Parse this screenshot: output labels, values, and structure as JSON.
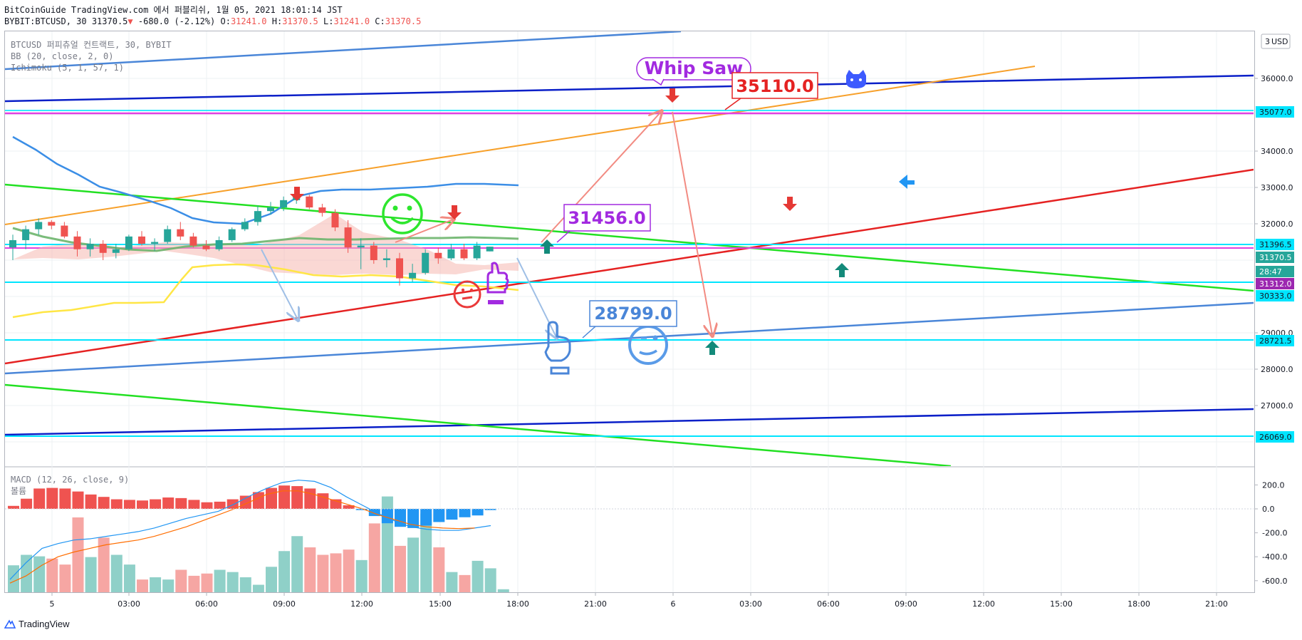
{
  "header": {
    "line1": "BitCoinGuide TradingView.com 에서 퍼블리쉬, 1월 05, 2021 18:01:14 JST",
    "symbol": "BYBIT:BTCUSD, 30",
    "last": "31370.5",
    "change_arrow": "▼",
    "change": "-680.0 (-2.12%)",
    "ohlc_prefix": [
      "O:",
      "H:",
      "L:",
      "C:"
    ],
    "ohlc": [
      "31241.0",
      "31370.5",
      "31241.0",
      "31370.5"
    ]
  },
  "legend": {
    "main": "BTCUSD 퍼피츄얼 컨트랙트, 30, BYBIT",
    "bb": "BB (20, close, 2, 0)",
    "ichimoku": "Ichimoku (5, 1, 57, 1)",
    "macd": "MACD (12, 26, close, 9)",
    "volume": "볼륨"
  },
  "annotations": {
    "whipsaw": "Whip Saw",
    "callout_35110": "35110.0",
    "callout_31456": "31456.0",
    "callout_28799": "28799.0"
  },
  "price_axis": {
    "currency": "USD",
    "compare": "3",
    "ticks": [
      "36000.0",
      "34000.0",
      "33000.0",
      "32000.0",
      "29000.0",
      "28000.0",
      "27000.0"
    ],
    "tags": [
      {
        "label": "35077.0",
        "color": "#00e5ff",
        "text_color": "#131722"
      },
      {
        "label": "31396.5",
        "color": "#00e5ff",
        "text_color": "#131722"
      },
      {
        "label": "31370.5",
        "color": "#26a69a",
        "text_color": "#ffffff"
      },
      {
        "label": "28:47",
        "color": "#26a69a",
        "text_color": "#ffffff"
      },
      {
        "label": "31312.0",
        "color": "#9c27b0",
        "text_color": "#ffffff"
      },
      {
        "label": "30333.0",
        "color": "#00e5ff",
        "text_color": "#131722"
      },
      {
        "label": "28721.5",
        "color": "#00e5ff",
        "text_color": "#131722"
      },
      {
        "label": "26069.0",
        "color": "#00e5ff",
        "text_color": "#131722"
      }
    ]
  },
  "macd_axis": {
    "ticks": [
      "200.0",
      "0.0",
      "-200.0",
      "-400.0",
      "-600.0"
    ]
  },
  "time_axis": {
    "ticks": [
      "5",
      "03:00",
      "06:00",
      "09:00",
      "12:00",
      "15:00",
      "18:00",
      "21:00",
      "6",
      "03:00",
      "06:00",
      "09:00",
      "12:00",
      "15:00",
      "18:00",
      "21:00"
    ]
  },
  "footer": {
    "brand": "TradingView"
  },
  "chart_data": [
    {
      "type": "candlestick",
      "title": "BTCUSD 퍼피츄얼 컨트랙트, 30, BYBIT",
      "ylabel": "USD",
      "ylim": [
        25800,
        36600
      ],
      "candles": [
        {
          "t": "00:00",
          "o": 31350,
          "h": 31700,
          "l": 31000,
          "c": 31550
        },
        {
          "t": "00:30",
          "o": 31550,
          "h": 31950,
          "l": 31300,
          "c": 31850
        },
        {
          "t": "01:00",
          "o": 31850,
          "h": 32150,
          "l": 31700,
          "c": 32050
        },
        {
          "t": "01:30",
          "o": 32050,
          "h": 32100,
          "l": 31850,
          "c": 31950
        },
        {
          "t": "02:00",
          "o": 31950,
          "h": 32050,
          "l": 31600,
          "c": 31650
        },
        {
          "t": "02:30",
          "o": 31650,
          "h": 31800,
          "l": 31100,
          "c": 31300
        },
        {
          "t": "03:00",
          "o": 31300,
          "h": 31600,
          "l": 31100,
          "c": 31450
        },
        {
          "t": "03:30",
          "o": 31450,
          "h": 31550,
          "l": 31000,
          "c": 31200
        },
        {
          "t": "04:00",
          "o": 31200,
          "h": 31450,
          "l": 31050,
          "c": 31300
        },
        {
          "t": "04:30",
          "o": 31300,
          "h": 31700,
          "l": 31250,
          "c": 31650
        },
        {
          "t": "05:00",
          "o": 31650,
          "h": 31800,
          "l": 31400,
          "c": 31450
        },
        {
          "t": "05:30",
          "o": 31450,
          "h": 31600,
          "l": 31250,
          "c": 31500
        },
        {
          "t": "06:00",
          "o": 31500,
          "h": 31950,
          "l": 31450,
          "c": 31850
        },
        {
          "t": "06:30",
          "o": 31850,
          "h": 32050,
          "l": 31550,
          "c": 31650
        },
        {
          "t": "07:00",
          "o": 31650,
          "h": 31750,
          "l": 31350,
          "c": 31400
        },
        {
          "t": "07:30",
          "o": 31400,
          "h": 31550,
          "l": 31250,
          "c": 31300
        },
        {
          "t": "08:00",
          "o": 31300,
          "h": 31650,
          "l": 31250,
          "c": 31550
        },
        {
          "t": "08:30",
          "o": 31550,
          "h": 31900,
          "l": 31500,
          "c": 31850
        },
        {
          "t": "09:00",
          "o": 31850,
          "h": 32150,
          "l": 31800,
          "c": 32050
        },
        {
          "t": "09:30",
          "o": 32050,
          "h": 32500,
          "l": 31950,
          "c": 32350
        },
        {
          "t": "10:00",
          "o": 32350,
          "h": 32600,
          "l": 32250,
          "c": 32450
        },
        {
          "t": "10:30",
          "o": 32450,
          "h": 32750,
          "l": 32350,
          "c": 32650
        },
        {
          "t": "11:00",
          "o": 32650,
          "h": 32850,
          "l": 32550,
          "c": 32750
        },
        {
          "t": "11:30",
          "o": 32750,
          "h": 32800,
          "l": 32400,
          "c": 32450
        },
        {
          "t": "12:00",
          "o": 32450,
          "h": 32550,
          "l": 32200,
          "c": 32300
        },
        {
          "t": "12:30",
          "o": 32300,
          "h": 32400,
          "l": 31800,
          "c": 31900
        },
        {
          "t": "13:00",
          "o": 31900,
          "h": 32100,
          "l": 31200,
          "c": 31350
        },
        {
          "t": "13:30",
          "o": 31350,
          "h": 31600,
          "l": 30750,
          "c": 31400
        },
        {
          "t": "14:00",
          "o": 31400,
          "h": 31500,
          "l": 30900,
          "c": 31000
        },
        {
          "t": "14:30",
          "o": 31000,
          "h": 31300,
          "l": 30800,
          "c": 31050
        },
        {
          "t": "15:00",
          "o": 31050,
          "h": 31200,
          "l": 30300,
          "c": 30500
        },
        {
          "t": "15:30",
          "o": 30500,
          "h": 30900,
          "l": 30400,
          "c": 30650
        },
        {
          "t": "16:00",
          "o": 30650,
          "h": 31300,
          "l": 30600,
          "c": 31200
        },
        {
          "t": "16:30",
          "o": 31200,
          "h": 31350,
          "l": 30900,
          "c": 31050
        },
        {
          "t": "17:00",
          "o": 31050,
          "h": 31450,
          "l": 31000,
          "c": 31300
        },
        {
          "t": "17:30",
          "o": 31300,
          "h": 31450,
          "l": 31000,
          "c": 31050
        },
        {
          "t": "18:00",
          "o": 31050,
          "h": 31500,
          "l": 31000,
          "c": 31400
        },
        {
          "t": "18:30",
          "o": 31241,
          "h": 31370.5,
          "l": 31241,
          "c": 31370.5
        }
      ],
      "bollinger": {
        "upper": [
          [
            0,
            33000
          ],
          [
            4,
            32300
          ],
          [
            8,
            31800
          ],
          [
            12,
            31400
          ],
          [
            16,
            31400
          ],
          [
            20,
            32300
          ],
          [
            24,
            32500
          ],
          [
            28,
            32400
          ],
          [
            32,
            32400
          ],
          [
            37,
            32400
          ]
        ],
        "middle": [
          [
            0,
            31600
          ],
          [
            4,
            31450
          ],
          [
            8,
            31300
          ],
          [
            12,
            31300
          ],
          [
            16,
            31500
          ],
          [
            20,
            31800
          ],
          [
            24,
            31700
          ],
          [
            28,
            31500
          ],
          [
            32,
            31450
          ],
          [
            37,
            31450
          ]
        ],
        "lower": [
          [
            0,
            29700
          ],
          [
            4,
            29800
          ],
          [
            8,
            29900
          ],
          [
            12,
            30100
          ],
          [
            14,
            30900
          ],
          [
            18,
            31000
          ],
          [
            22,
            30850
          ],
          [
            26,
            30700
          ],
          [
            30,
            30500
          ],
          [
            34,
            30350
          ],
          [
            37,
            30250
          ]
        ]
      },
      "support_resistance": [
        35077.0,
        31396.5,
        31312.0,
        30333.0,
        28721.5,
        26069.0
      ],
      "labels": [
        "Whip Saw",
        "35110.0",
        "31456.0",
        "28799.0"
      ]
    },
    {
      "type": "bar",
      "title": "MACD (12, 26, close, 9)",
      "ylim": [
        -750,
        280
      ],
      "histogram": [
        -20,
        -20,
        -20,
        -20,
        -20,
        -20,
        -20,
        -20,
        -20,
        -20,
        -20,
        -20,
        -20,
        -20,
        -20,
        -20,
        -20,
        -20,
        -20,
        -20,
        -20,
        -20,
        -20,
        -20,
        -20,
        -20,
        -20,
        -20,
        -20,
        -20,
        -20,
        -20,
        -20,
        -20,
        -20,
        -20,
        -20,
        -20
      ],
      "histogram_values": [
        25,
        85,
        170,
        175,
        170,
        145,
        120,
        100,
        80,
        75,
        70,
        80,
        95,
        90,
        75,
        55,
        60,
        80,
        110,
        140,
        175,
        195,
        190,
        170,
        130,
        80,
        30,
        -10,
        -60,
        -120,
        -150,
        -160,
        -140,
        -110,
        -90,
        -70,
        -55,
        -10
      ],
      "macd": [
        -590,
        -450,
        -330,
        -290,
        -260,
        -250,
        -230,
        -210,
        -190,
        -160,
        -120,
        -80,
        -50,
        -20,
        40,
        110,
        170,
        220,
        240,
        230,
        180,
        100,
        30,
        -40,
        -100,
        -150,
        -170,
        -180,
        -180,
        -160,
        -140
      ],
      "signal": [
        -620,
        -560,
        -470,
        -400,
        -360,
        -330,
        -300,
        -280,
        -260,
        -230,
        -190,
        -150,
        -100,
        -50,
        0,
        60,
        120,
        150,
        150,
        120,
        80,
        40,
        0,
        -50,
        -90,
        -130,
        -150,
        -160,
        -165,
        -160
      ],
      "volume": [
        0.36,
        0.5,
        0.48,
        0.45,
        0.37,
        1.0,
        0.47,
        0.73,
        0.5,
        0.37,
        0.17,
        0.2,
        0.17,
        0.3,
        0.22,
        0.25,
        0.3,
        0.27,
        0.2,
        0.1,
        0.34,
        0.55,
        0.75,
        0.6,
        0.5,
        0.52,
        0.57,
        0.43,
        0.92,
        1.28,
        0.62,
        0.73,
        1.05,
        0.6,
        0.27,
        0.23,
        0.42,
        0.32,
        0.04
      ]
    }
  ]
}
